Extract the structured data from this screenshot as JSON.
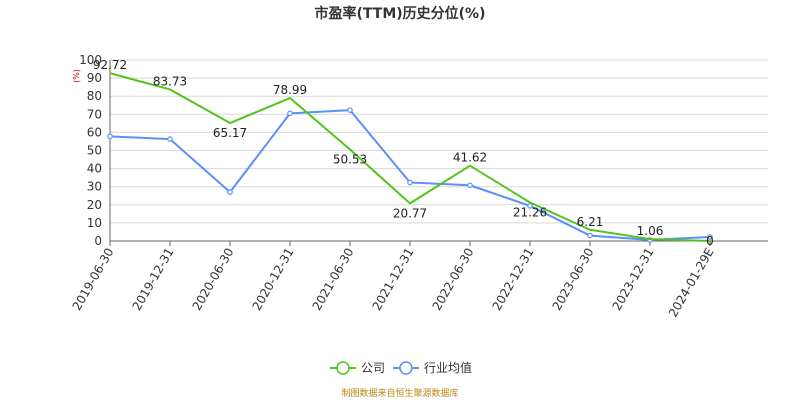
{
  "chart_data": {
    "type": "line",
    "title": "市盈率(TTM)历史分位(%)",
    "ylabel": "(%)",
    "ylim": [
      0,
      100
    ],
    "yticks": [
      0,
      10,
      20,
      30,
      40,
      50,
      60,
      70,
      80,
      90,
      100
    ],
    "grid": true,
    "legend_position": "bottom",
    "categories": [
      "2019-06-30",
      "2019-12-31",
      "2020-06-30",
      "2020-12-31",
      "2021-06-30",
      "2021-12-31",
      "2022-06-30",
      "2022-12-31",
      "2023-06-30",
      "2023-12-31",
      "2024-01-29E"
    ],
    "series": [
      {
        "name": "公司",
        "color": "#52c41a",
        "values": [
          92.72,
          83.73,
          65.17,
          78.99,
          50.53,
          20.77,
          41.62,
          21.26,
          6.21,
          1.06,
          0
        ],
        "labels": [
          "92.72",
          "83.73",
          "65.17",
          "78.99",
          "50.53",
          "20.77",
          "41.62",
          "21.26",
          "6.21",
          "1.06",
          "0"
        ]
      },
      {
        "name": "行业均值",
        "color": "#5b8ff9",
        "values": [
          57.8,
          56.3,
          27.0,
          70.5,
          72.3,
          32.3,
          30.8,
          19.4,
          3.0,
          0.6,
          2.2
        ]
      }
    ]
  },
  "source_note": "制图数据来自恒生聚源数据库"
}
